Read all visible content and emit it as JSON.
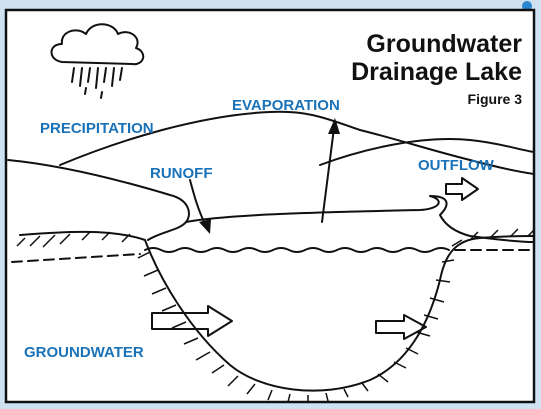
{
  "title": {
    "lines": [
      "Groundwater",
      "Drainage Lake"
    ]
  },
  "figure": "Figure 3",
  "labels": {
    "precipitation": "PRECIPITATION",
    "evaporation": "EVAPORATION",
    "runoff": "RUNOFF",
    "outflow": "OUTFLOW",
    "groundwater": "GROUNDWATER"
  }
}
